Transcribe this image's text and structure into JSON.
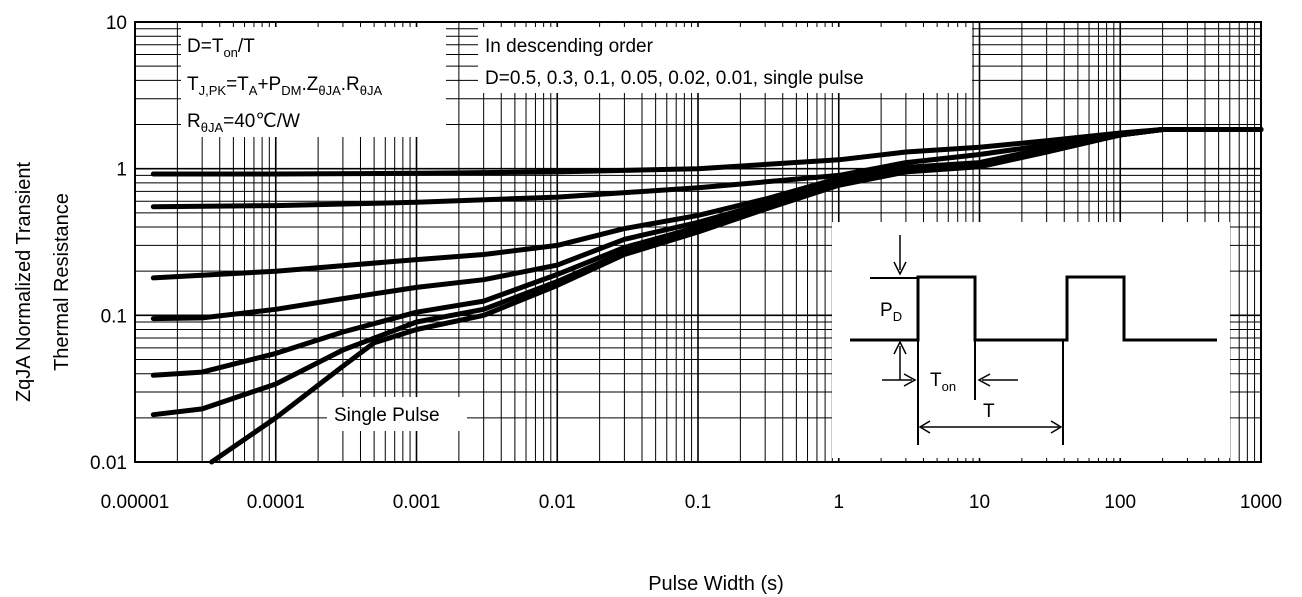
{
  "chart_data": {
    "type": "line",
    "title": "",
    "xlabel": "Pulse Width (s)",
    "ylabel_lines": [
      "ZqJA Normalized Transient",
      "Thermal Resistance"
    ],
    "x_scale": "log",
    "y_scale": "log",
    "xlim": [
      1e-05,
      1000
    ],
    "ylim": [
      0.01,
      10
    ],
    "grid": true,
    "x_ticks": [
      {
        "value": 1e-05,
        "label": "0.00001"
      },
      {
        "value": 0.0001,
        "label": "0.0001"
      },
      {
        "value": 0.001,
        "label": "0.001"
      },
      {
        "value": 0.01,
        "label": "0.01"
      },
      {
        "value": 0.1,
        "label": "0.1"
      },
      {
        "value": 1,
        "label": "1"
      },
      {
        "value": 10,
        "label": "10"
      },
      {
        "value": 100,
        "label": "100"
      },
      {
        "value": 1000,
        "label": "1000"
      }
    ],
    "y_ticks": [
      {
        "value": 10,
        "label": "10"
      },
      {
        "value": 1,
        "label": "1"
      },
      {
        "value": 0.1,
        "label": "0.1"
      },
      {
        "value": 0.01,
        "label": "0.01"
      }
    ],
    "annotations": {
      "box1": {
        "line1": {
          "main": "D=T",
          "sub": "on",
          "tail": "/T"
        },
        "line2": [
          {
            "t": "T",
            "s": ""
          },
          {
            "t": "J,PK",
            "s": "sub"
          },
          {
            "t": "=T",
            "s": ""
          },
          {
            "t": "A",
            "s": "sub"
          },
          {
            "t": "+P",
            "s": ""
          },
          {
            "t": "DM",
            "s": "sub"
          },
          {
            "t": ".Z",
            "s": ""
          },
          {
            "t": "θJA",
            "s": "sub"
          },
          {
            "t": ".R",
            "s": ""
          },
          {
            "t": "θJA",
            "s": "sub"
          }
        ],
        "line3": [
          {
            "t": "R",
            "s": ""
          },
          {
            "t": "θJA",
            "s": "sub"
          },
          {
            "t": "=40℃/W",
            "s": ""
          }
        ]
      },
      "box2": {
        "line1": "In descending order",
        "line2": "D=0.5, 0.3, 0.1, 0.05, 0.02, 0.01, single pulse"
      },
      "single_pulse_label": "Single Pulse",
      "inset": {
        "pd_label": "P",
        "pd_sub": "D",
        "ton_label": "T",
        "ton_sub": "on",
        "period_label": "T"
      }
    },
    "series": [
      {
        "values": [
          [
            1.35e-05,
            0.92
          ],
          [
            0.0001,
            0.92
          ],
          [
            0.001,
            0.93
          ],
          [
            0.01,
            0.95
          ],
          [
            0.1,
            1.0
          ],
          [
            1,
            1.15
          ],
          [
            3,
            1.3
          ],
          [
            10,
            1.4
          ],
          [
            30,
            1.55
          ],
          [
            100,
            1.75
          ],
          [
            200,
            1.85
          ],
          [
            1000,
            1.85
          ]
        ]
      },
      {
        "values": [
          [
            1.35e-05,
            0.55
          ],
          [
            0.0001,
            0.56
          ],
          [
            0.001,
            0.59
          ],
          [
            0.01,
            0.64
          ],
          [
            0.1,
            0.74
          ],
          [
            1,
            0.9
          ],
          [
            3,
            1.1
          ],
          [
            10,
            1.25
          ],
          [
            30,
            1.45
          ],
          [
            100,
            1.72
          ],
          [
            200,
            1.85
          ],
          [
            1000,
            1.85
          ]
        ]
      },
      {
        "values": [
          [
            1.35e-05,
            0.18
          ],
          [
            0.0001,
            0.2
          ],
          [
            0.001,
            0.24
          ],
          [
            0.003,
            0.26
          ],
          [
            0.01,
            0.3
          ],
          [
            0.03,
            0.39
          ],
          [
            0.1,
            0.48
          ],
          [
            0.3,
            0.62
          ],
          [
            1,
            0.86
          ],
          [
            3,
            1.02
          ],
          [
            10,
            1.1
          ],
          [
            30,
            1.38
          ],
          [
            100,
            1.7
          ],
          [
            200,
            1.85
          ],
          [
            1000,
            1.85
          ]
        ]
      },
      {
        "values": [
          [
            1.35e-05,
            0.095
          ],
          [
            3e-05,
            0.096
          ],
          [
            0.0001,
            0.11
          ],
          [
            0.0003,
            0.13
          ],
          [
            0.001,
            0.155
          ],
          [
            0.003,
            0.175
          ],
          [
            0.01,
            0.22
          ],
          [
            0.03,
            0.33
          ],
          [
            0.1,
            0.43
          ],
          [
            0.3,
            0.58
          ],
          [
            1,
            0.82
          ],
          [
            3,
            1.0
          ],
          [
            10,
            1.07
          ],
          [
            30,
            1.35
          ],
          [
            100,
            1.7
          ],
          [
            200,
            1.85
          ],
          [
            1000,
            1.85
          ]
        ]
      },
      {
        "values": [
          [
            1.35e-05,
            0.039
          ],
          [
            3e-05,
            0.041
          ],
          [
            0.0001,
            0.055
          ],
          [
            0.0003,
            0.077
          ],
          [
            0.001,
            0.105
          ],
          [
            0.003,
            0.125
          ],
          [
            0.01,
            0.19
          ],
          [
            0.03,
            0.29
          ],
          [
            0.1,
            0.4
          ],
          [
            0.3,
            0.57
          ],
          [
            1,
            0.8
          ],
          [
            3,
            0.98
          ],
          [
            10,
            1.05
          ],
          [
            30,
            1.33
          ],
          [
            100,
            1.7
          ],
          [
            200,
            1.85
          ],
          [
            1000,
            1.85
          ]
        ]
      },
      {
        "values": [
          [
            1.35e-05,
            0.021
          ],
          [
            3e-05,
            0.023
          ],
          [
            0.0001,
            0.034
          ],
          [
            0.0003,
            0.058
          ],
          [
            0.001,
            0.09
          ],
          [
            0.003,
            0.11
          ],
          [
            0.01,
            0.17
          ],
          [
            0.03,
            0.27
          ],
          [
            0.1,
            0.38
          ],
          [
            0.3,
            0.55
          ],
          [
            1,
            0.78
          ],
          [
            3,
            0.96
          ],
          [
            10,
            1.04
          ],
          [
            30,
            1.32
          ],
          [
            100,
            1.7
          ],
          [
            200,
            1.85
          ],
          [
            1000,
            1.85
          ]
        ]
      },
      {
        "values": [
          [
            3.5e-05,
            0.01
          ],
          [
            0.0001,
            0.02
          ],
          [
            0.0003,
            0.045
          ],
          [
            0.0005,
            0.065
          ],
          [
            0.001,
            0.08
          ],
          [
            0.003,
            0.1
          ],
          [
            0.01,
            0.16
          ],
          [
            0.03,
            0.26
          ],
          [
            0.1,
            0.37
          ],
          [
            0.3,
            0.53
          ],
          [
            1,
            0.77
          ],
          [
            3,
            0.95
          ],
          [
            10,
            1.03
          ],
          [
            30,
            1.3
          ],
          [
            100,
            1.7
          ],
          [
            200,
            1.85
          ],
          [
            1000,
            1.85
          ]
        ]
      }
    ]
  }
}
